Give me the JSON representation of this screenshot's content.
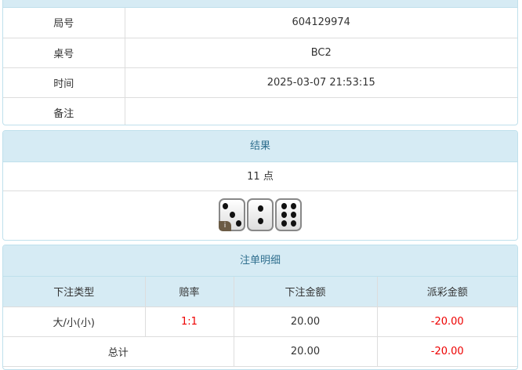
{
  "info": {
    "rows": [
      {
        "label": "局号",
        "value": "604129974"
      },
      {
        "label": "桌号",
        "value": "BC2"
      },
      {
        "label": "时间",
        "value": "2025-03-07 21:53:15"
      },
      {
        "label": "备注",
        "value": ""
      }
    ]
  },
  "result": {
    "title": "结果",
    "points": "11 点",
    "dice": [
      3,
      2,
      6
    ],
    "badge": "i"
  },
  "bets": {
    "title": "注单明细",
    "headers": [
      "下注类型",
      "赔率",
      "下注金额",
      "派彩金额"
    ],
    "rows": [
      {
        "type": "大/小(小)",
        "odds": "1:1",
        "amount": "20.00",
        "payout": "-20.00"
      }
    ],
    "total": {
      "label": "总计",
      "amount": "20.00",
      "payout": "-20.00"
    }
  },
  "colors": {
    "header_bg": "#d6ebf4",
    "negative": "#ee0000"
  }
}
